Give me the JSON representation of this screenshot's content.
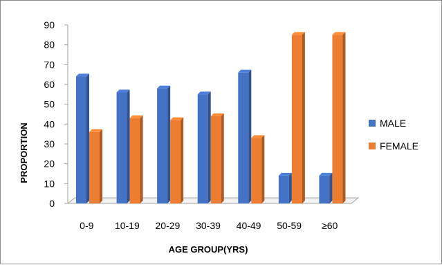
{
  "chart_data": {
    "type": "bar",
    "categories": [
      "0-9",
      "10-19",
      "20-29",
      "30-39",
      "40-49",
      "50-59",
      "≥60"
    ],
    "series": [
      {
        "name": "MALE",
        "values": [
          64,
          56,
          58,
          55,
          66,
          14,
          14
        ],
        "color": "#4472c4"
      },
      {
        "name": "FEMALE",
        "values": [
          36,
          43,
          42,
          44,
          33,
          85,
          85
        ],
        "color": "#ed7d31"
      }
    ],
    "xlabel": "AGE GROUP(YRS)",
    "ylabel": "PROPORTION",
    "ylim": [
      0,
      90
    ],
    "yticks": [
      0,
      10,
      20,
      30,
      40,
      50,
      60,
      70,
      80,
      90
    ],
    "grid": false,
    "bar_style": "3d",
    "legend_position": "right"
  }
}
